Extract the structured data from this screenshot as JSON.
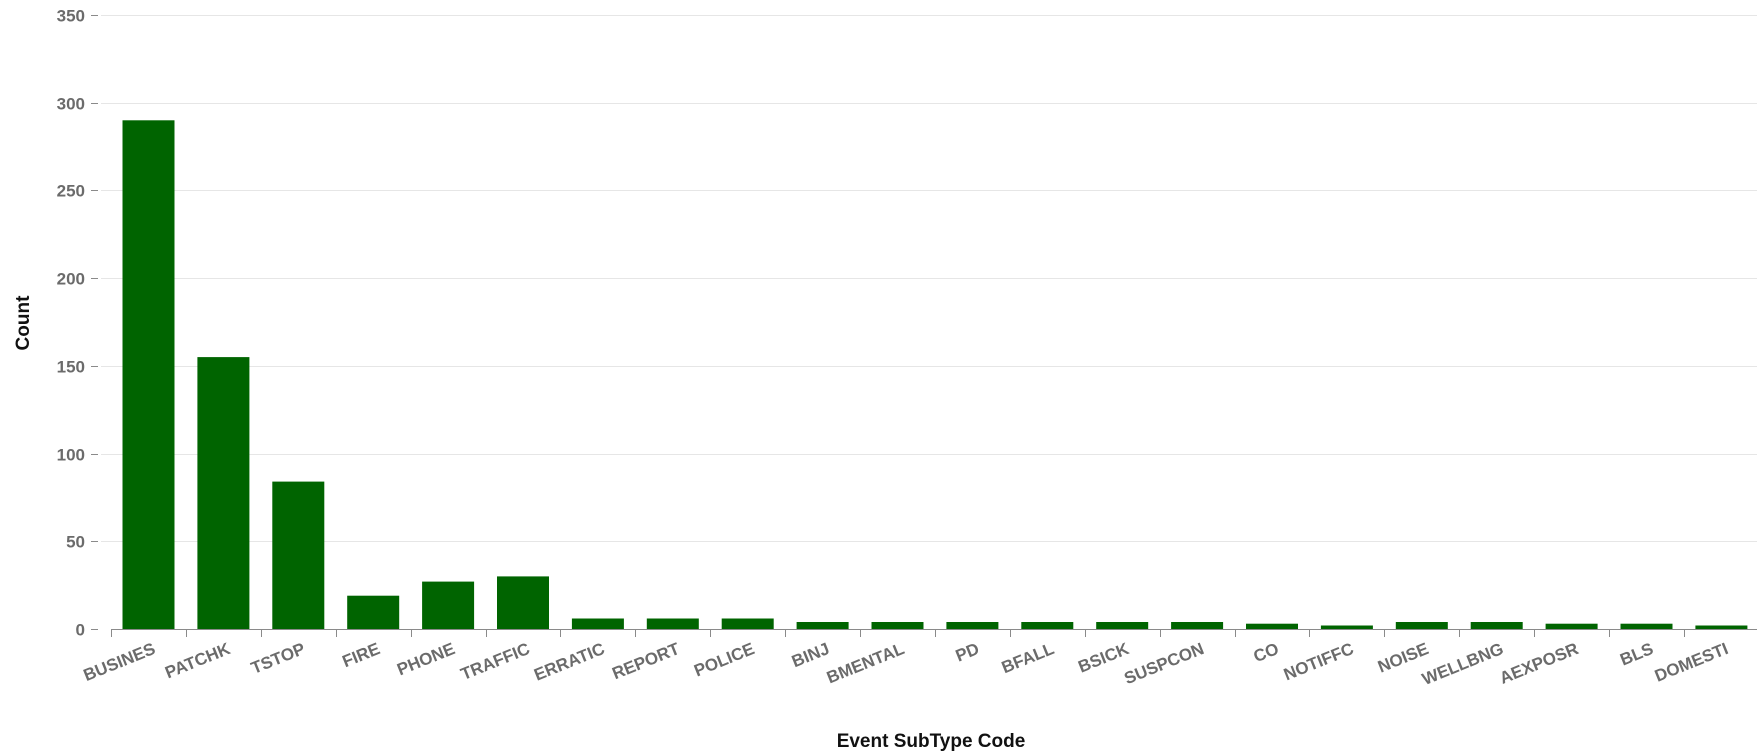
{
  "chart_data": {
    "type": "bar",
    "title": "",
    "xlabel": "Event SubType Code",
    "ylabel": "Count",
    "ylim": [
      0,
      350
    ],
    "yticks": [
      0,
      50,
      100,
      150,
      200,
      250,
      300,
      350
    ],
    "grid": true,
    "bar_color": "#006400",
    "categories": [
      "BUSINES",
      "PATCHK",
      "TSTOP",
      "FIRE",
      "PHONE",
      "TRAFFIC",
      "ERRATIC",
      "REPORT",
      "POLICE",
      "BINJ",
      "BMENTAL",
      "PD",
      "BFALL",
      "BSICK",
      "SUSPCON",
      "CO",
      "NOTIFFC",
      "NOISE",
      "WELLBNG",
      "AEXPOSR",
      "BLS",
      "DOMESTI"
    ],
    "values": [
      290,
      155,
      84,
      19,
      27,
      30,
      6,
      6,
      6,
      4,
      4,
      4,
      4,
      4,
      4,
      3,
      2,
      4,
      4,
      3,
      3,
      2
    ]
  }
}
